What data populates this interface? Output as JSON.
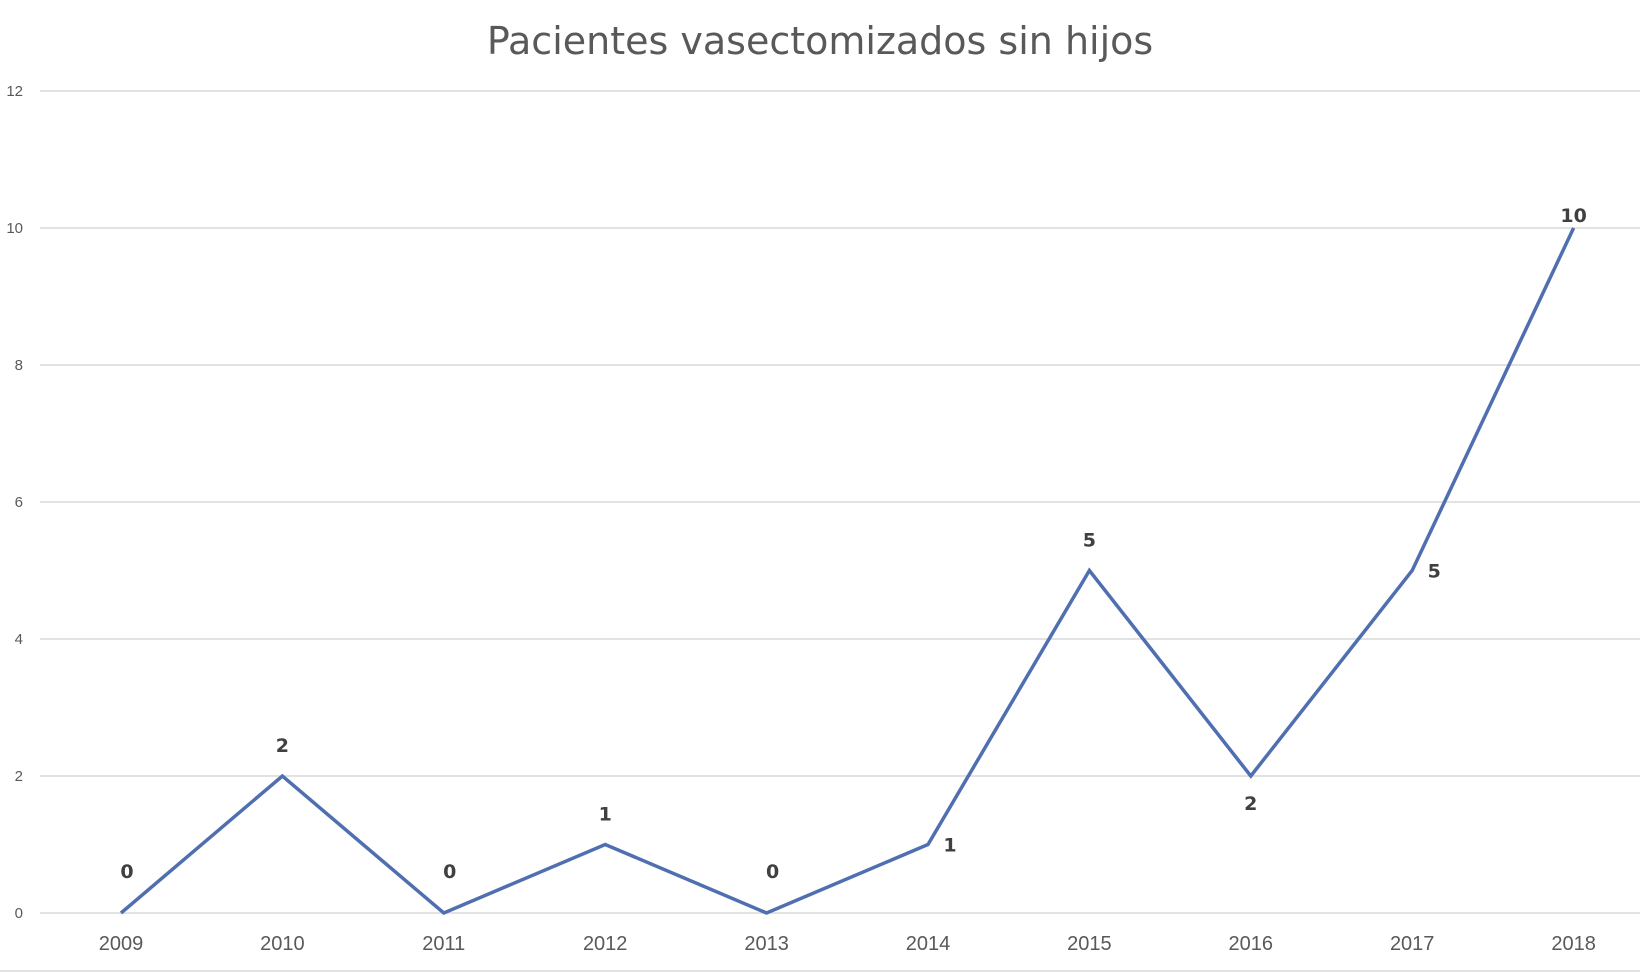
{
  "chart_data": {
    "type": "line",
    "title": "Pacientes vasectomizados sin hijos",
    "xlabel": "",
    "ylabel": "",
    "categories": [
      "2009",
      "2010",
      "2011",
      "2012",
      "2013",
      "2014",
      "2015",
      "2016",
      "2017",
      "2018"
    ],
    "series": [
      {
        "values": [
          0,
          2,
          0,
          1,
          0,
          1,
          5,
          2,
          5,
          10
        ]
      }
    ],
    "ylim": [
      0,
      12
    ],
    "yticks": [
      0,
      2,
      4,
      6,
      8,
      10,
      12
    ],
    "grid": true,
    "legend": "none",
    "data_labels": true,
    "colors": {
      "series": "#4f6fb0",
      "grid": "#d9d9d9",
      "text": "#595959",
      "label": "#404040"
    }
  }
}
